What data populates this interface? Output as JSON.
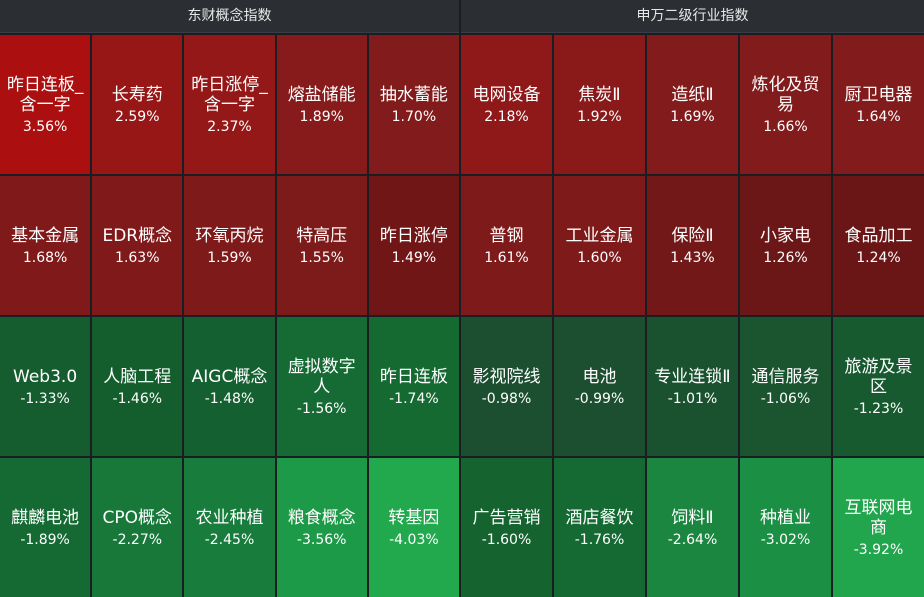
{
  "panels": [
    {
      "title": "东财概念指数",
      "tiles": [
        {
          "name": "昨日连板_含一字",
          "pct": "3.56%",
          "color": "#ab0f0f"
        },
        {
          "name": "长寿药",
          "pct": "2.59%",
          "color": "#971616"
        },
        {
          "name": "昨日涨停_含一字",
          "pct": "2.37%",
          "color": "#951818"
        },
        {
          "name": "熔盐储能",
          "pct": "1.89%",
          "color": "#871b1b"
        },
        {
          "name": "抽水蓄能",
          "pct": "1.70%",
          "color": "#821b1b"
        },
        {
          "name": "基本金属",
          "pct": "1.68%",
          "color": "#801a1a"
        },
        {
          "name": "EDR概念",
          "pct": "1.63%",
          "color": "#801a1a"
        },
        {
          "name": "环氧丙烷",
          "pct": "1.59%",
          "color": "#7e1a1a"
        },
        {
          "name": "特高压",
          "pct": "1.55%",
          "color": "#7d1a1a"
        },
        {
          "name": "昨日涨停",
          "pct": "1.49%",
          "color": "#701616"
        },
        {
          "name": "Web3.0",
          "pct": "-1.33%",
          "color": "#155c2e"
        },
        {
          "name": "人脑工程",
          "pct": "-1.46%",
          "color": "#145e2e"
        },
        {
          "name": "AIGC概念",
          "pct": "-1.48%",
          "color": "#146030"
        },
        {
          "name": "虚拟数字人",
          "pct": "-1.56%",
          "color": "#166a33"
        },
        {
          "name": "昨日连板",
          "pct": "-1.74%",
          "color": "#156a32"
        },
        {
          "name": "麒麟电池",
          "pct": "-1.89%",
          "color": "#146a32"
        },
        {
          "name": "CPO概念",
          "pct": "-2.27%",
          "color": "#17783a"
        },
        {
          "name": "农业种植",
          "pct": "-2.45%",
          "color": "#187d3c"
        },
        {
          "name": "粮食概念",
          "pct": "-3.56%",
          "color": "#1d9a47"
        },
        {
          "name": "转基因",
          "pct": "-4.03%",
          "color": "#22a94e"
        }
      ]
    },
    {
      "title": "申万二级行业指数",
      "tiles": [
        {
          "name": "电网设备",
          "pct": "2.18%",
          "color": "#8f1818"
        },
        {
          "name": "焦炭Ⅱ",
          "pct": "1.92%",
          "color": "#8a1a1a"
        },
        {
          "name": "造纸Ⅱ",
          "pct": "1.69%",
          "color": "#821b1b"
        },
        {
          "name": "炼化及贸易",
          "pct": "1.66%",
          "color": "#821b1b"
        },
        {
          "name": "厨卫电器",
          "pct": "1.64%",
          "color": "#821b1b"
        },
        {
          "name": "普钢",
          "pct": "1.61%",
          "color": "#7e1a1a"
        },
        {
          "name": "工业金属",
          "pct": "1.60%",
          "color": "#7e1a1a"
        },
        {
          "name": "保险Ⅱ",
          "pct": "1.43%",
          "color": "#731818"
        },
        {
          "name": "小家电",
          "pct": "1.26%",
          "color": "#6c1717"
        },
        {
          "name": "食品加工",
          "pct": "1.24%",
          "color": "#6a1616"
        },
        {
          "name": "影视院线",
          "pct": "-0.98%",
          "color": "#1b4f30"
        },
        {
          "name": "电池",
          "pct": "-0.99%",
          "color": "#1b4f30"
        },
        {
          "name": "专业连锁Ⅱ",
          "pct": "-1.01%",
          "color": "#1a5230"
        },
        {
          "name": "通信服务",
          "pct": "-1.06%",
          "color": "#1a5530"
        },
        {
          "name": "旅游及景区",
          "pct": "-1.23%",
          "color": "#185a30"
        },
        {
          "name": "广告营销",
          "pct": "-1.60%",
          "color": "#15642f"
        },
        {
          "name": "酒店餐饮",
          "pct": "-1.76%",
          "color": "#146a32"
        },
        {
          "name": "饲料Ⅱ",
          "pct": "-2.64%",
          "color": "#1a863f"
        },
        {
          "name": "种植业",
          "pct": "-3.02%",
          "color": "#1b8f43"
        },
        {
          "name": "互联网电商",
          "pct": "-3.92%",
          "color": "#22a64d"
        }
      ]
    }
  ]
}
